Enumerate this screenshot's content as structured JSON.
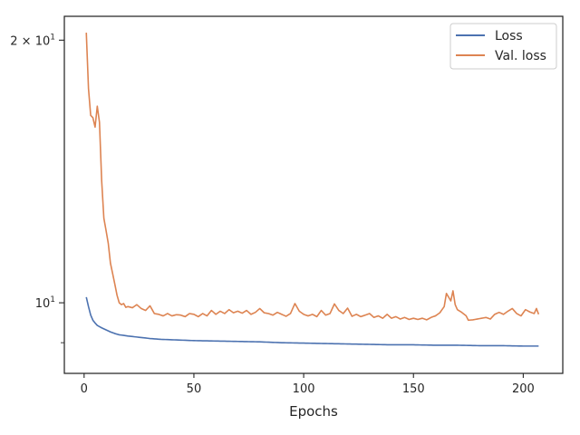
{
  "chart_data": {
    "type": "line",
    "title": "",
    "xlabel": "Epochs",
    "ylabel": "",
    "yscale": "log",
    "xlim": [
      -9,
      218
    ],
    "ylim": [
      8.3,
      21.3
    ],
    "x_ticks": [
      0,
      50,
      100,
      150,
      200
    ],
    "x_tick_labels": [
      "0",
      "50",
      "100",
      "150",
      "200"
    ],
    "y_major_ticks": [
      {
        "value": 10,
        "label": "10^1"
      },
      {
        "value": 20,
        "label": "2 × 10^1"
      }
    ],
    "y_minor_ticks": [
      9
    ],
    "grid": false,
    "legend": "top-right",
    "x": {
      "start": 1,
      "end": 207
    },
    "series": [
      {
        "name": "Loss",
        "color": "#4c72b0",
        "keypoints": [
          [
            1,
            10.15
          ],
          [
            2,
            9.9
          ],
          [
            3,
            9.68
          ],
          [
            4,
            9.55
          ],
          [
            5,
            9.48
          ],
          [
            6,
            9.42
          ],
          [
            8,
            9.36
          ],
          [
            10,
            9.31
          ],
          [
            12,
            9.26
          ],
          [
            14,
            9.22
          ],
          [
            16,
            9.19
          ],
          [
            20,
            9.16
          ],
          [
            25,
            9.13
          ],
          [
            30,
            9.1
          ],
          [
            35,
            9.08
          ],
          [
            40,
            9.07
          ],
          [
            50,
            9.05
          ],
          [
            60,
            9.04
          ],
          [
            70,
            9.03
          ],
          [
            80,
            9.02
          ],
          [
            90,
            9.0
          ],
          [
            100,
            8.99
          ],
          [
            110,
            8.98
          ],
          [
            120,
            8.97
          ],
          [
            130,
            8.96
          ],
          [
            140,
            8.95
          ],
          [
            150,
            8.95
          ],
          [
            160,
            8.94
          ],
          [
            170,
            8.94
          ],
          [
            180,
            8.93
          ],
          [
            190,
            8.93
          ],
          [
            200,
            8.92
          ],
          [
            207,
            8.92
          ]
        ]
      },
      {
        "name": "Val. loss",
        "color": "#dd8452",
        "keypoints": [
          [
            1,
            20.4
          ],
          [
            2,
            17.6
          ],
          [
            3,
            16.4
          ],
          [
            4,
            16.3
          ],
          [
            5,
            15.9
          ],
          [
            6,
            16.8
          ],
          [
            7,
            16.1
          ],
          [
            8,
            13.8
          ],
          [
            9,
            12.5
          ],
          [
            10,
            12.1
          ],
          [
            11,
            11.7
          ],
          [
            12,
            11.1
          ],
          [
            13,
            10.8
          ],
          [
            14,
            10.5
          ],
          [
            15,
            10.2
          ],
          [
            16,
            10.0
          ],
          [
            17,
            9.95
          ],
          [
            18,
            9.98
          ],
          [
            19,
            9.88
          ],
          [
            20,
            9.9
          ],
          [
            22,
            9.87
          ],
          [
            24,
            9.95
          ],
          [
            26,
            9.85
          ],
          [
            28,
            9.8
          ],
          [
            30,
            9.92
          ],
          [
            32,
            9.72
          ],
          [
            34,
            9.7
          ],
          [
            36,
            9.66
          ],
          [
            38,
            9.72
          ],
          [
            40,
            9.66
          ],
          [
            42,
            9.69
          ],
          [
            44,
            9.68
          ],
          [
            46,
            9.64
          ],
          [
            48,
            9.72
          ],
          [
            50,
            9.7
          ],
          [
            52,
            9.64
          ],
          [
            54,
            9.72
          ],
          [
            56,
            9.66
          ],
          [
            58,
            9.8
          ],
          [
            60,
            9.7
          ],
          [
            62,
            9.78
          ],
          [
            64,
            9.72
          ],
          [
            66,
            9.82
          ],
          [
            68,
            9.74
          ],
          [
            70,
            9.78
          ],
          [
            72,
            9.73
          ],
          [
            74,
            9.8
          ],
          [
            76,
            9.7
          ],
          [
            78,
            9.75
          ],
          [
            80,
            9.85
          ],
          [
            82,
            9.74
          ],
          [
            84,
            9.72
          ],
          [
            86,
            9.68
          ],
          [
            88,
            9.75
          ],
          [
            90,
            9.7
          ],
          [
            92,
            9.65
          ],
          [
            94,
            9.72
          ],
          [
            96,
            9.98
          ],
          [
            98,
            9.78
          ],
          [
            100,
            9.7
          ],
          [
            102,
            9.66
          ],
          [
            104,
            9.7
          ],
          [
            106,
            9.64
          ],
          [
            108,
            9.8
          ],
          [
            110,
            9.68
          ],
          [
            112,
            9.72
          ],
          [
            114,
            9.97
          ],
          [
            116,
            9.8
          ],
          [
            118,
            9.72
          ],
          [
            120,
            9.86
          ],
          [
            122,
            9.65
          ],
          [
            124,
            9.7
          ],
          [
            126,
            9.64
          ],
          [
            128,
            9.68
          ],
          [
            130,
            9.72
          ],
          [
            132,
            9.62
          ],
          [
            134,
            9.66
          ],
          [
            136,
            9.6
          ],
          [
            138,
            9.7
          ],
          [
            140,
            9.6
          ],
          [
            142,
            9.64
          ],
          [
            144,
            9.58
          ],
          [
            146,
            9.62
          ],
          [
            148,
            9.57
          ],
          [
            150,
            9.6
          ],
          [
            152,
            9.57
          ],
          [
            154,
            9.6
          ],
          [
            156,
            9.56
          ],
          [
            158,
            9.62
          ],
          [
            160,
            9.66
          ],
          [
            162,
            9.74
          ],
          [
            164,
            9.9
          ],
          [
            165,
            10.25
          ],
          [
            166,
            10.15
          ],
          [
            167,
            10.05
          ],
          [
            168,
            10.32
          ],
          [
            169,
            9.95
          ],
          [
            170,
            9.82
          ],
          [
            172,
            9.75
          ],
          [
            174,
            9.66
          ],
          [
            175,
            9.55
          ],
          [
            177,
            9.56
          ],
          [
            179,
            9.58
          ],
          [
            181,
            9.6
          ],
          [
            183,
            9.62
          ],
          [
            185,
            9.58
          ],
          [
            187,
            9.7
          ],
          [
            189,
            9.75
          ],
          [
            191,
            9.7
          ],
          [
            193,
            9.78
          ],
          [
            195,
            9.85
          ],
          [
            197,
            9.72
          ],
          [
            199,
            9.66
          ],
          [
            201,
            9.82
          ],
          [
            203,
            9.76
          ],
          [
            205,
            9.72
          ],
          [
            206,
            9.85
          ],
          [
            207,
            9.7
          ]
        ]
      }
    ]
  }
}
